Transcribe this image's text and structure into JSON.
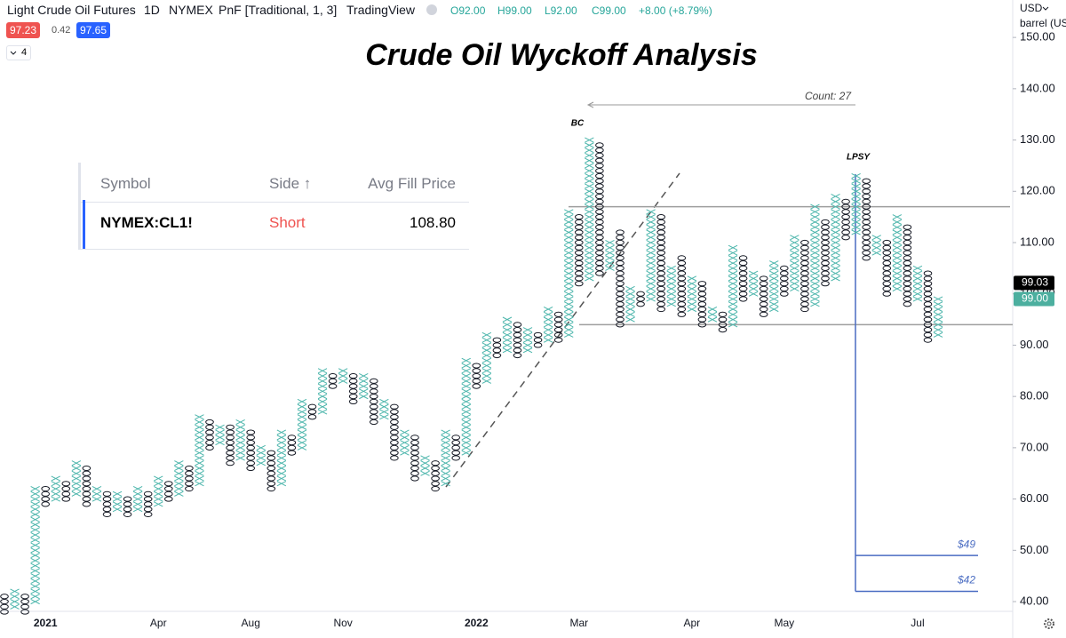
{
  "header": {
    "symbol": "Light Crude Oil Futures",
    "interval": "1D",
    "exchange": "NYMEX",
    "chart_style": "PnF [Traditional, 1, 3]",
    "source": "TradingView",
    "open": "O92.00",
    "high": "H99.00",
    "low": "L92.00",
    "close": "C99.00",
    "change": "+8.00 (+8.79%)",
    "sell": "97.23",
    "spread": "0.42",
    "buy": "97.65",
    "indicators": "4"
  },
  "scale": {
    "currency": "USD",
    "unit": "barrel (US"
  },
  "order_panel": {
    "columns": [
      "Symbol",
      "Side ↑",
      "Avg Fill Price"
    ],
    "rows": [
      [
        "NYMEX:CL1!",
        "Short",
        "108.80"
      ]
    ]
  },
  "chart_data": {
    "type": "pnf",
    "title": "Crude Oil Wyckoff Analysis",
    "box_size": 1,
    "categories": [
      null,
      null,
      null,
      null,
      "2021",
      null,
      null,
      null,
      null,
      null,
      null,
      null,
      null,
      null,
      null,
      "Apr",
      null,
      null,
      null,
      null,
      null,
      null,
      null,
      null,
      "Aug",
      null,
      null,
      null,
      null,
      null,
      null,
      null,
      null,
      "Nov",
      null,
      null,
      null,
      null,
      null,
      null,
      null,
      null,
      null,
      null,
      null,
      null,
      "2022",
      null,
      null,
      null,
      null,
      null,
      null,
      null,
      null,
      null,
      "Mar",
      null,
      null,
      null,
      null,
      null,
      null,
      null,
      null,
      null,
      null,
      "Apr",
      null,
      null,
      null,
      null,
      null,
      null,
      null,
      null,
      "May",
      null,
      null,
      null,
      null,
      null,
      null,
      null,
      null,
      null,
      null,
      null,
      null,
      "Jul",
      null,
      null
    ],
    "kind": [
      "o",
      "x",
      "o",
      "x",
      "o",
      "x",
      "o",
      "x",
      "o",
      "x",
      "o",
      "x",
      "o",
      "x",
      "o",
      "x",
      "o",
      "x",
      "o",
      "x",
      "o",
      "x",
      "o",
      "x",
      "o",
      "x",
      "o",
      "x",
      "o",
      "x",
      "o",
      "x",
      "o",
      "x",
      "o",
      "x",
      "o",
      "x",
      "o",
      "x",
      "o",
      "x",
      "o",
      "x",
      "o",
      "x",
      "o",
      "x",
      "o",
      "x",
      "o",
      "x",
      "o",
      "x",
      "o",
      "x",
      "o",
      "x",
      "o",
      "x",
      "o",
      "x",
      "o",
      "x",
      "o",
      "x",
      "o",
      "x",
      "o",
      "x",
      "o",
      "x",
      "o",
      "x",
      "o",
      "x",
      "o",
      "x",
      "o",
      "x",
      "o",
      "x",
      "o",
      "x",
      "o",
      "x",
      "o",
      "x",
      "o",
      "x",
      "o",
      "x"
    ],
    "low": [
      38,
      39,
      38,
      40,
      59,
      60,
      60,
      61,
      59,
      60,
      57,
      58,
      57,
      58,
      57,
      59,
      60,
      61,
      62,
      63,
      70,
      71,
      67,
      68,
      66,
      67,
      62,
      63,
      69,
      70,
      76,
      77,
      82,
      83,
      79,
      80,
      75,
      76,
      68,
      69,
      64,
      65,
      62,
      63,
      68,
      69,
      82,
      83,
      88,
      89,
      88,
      89,
      90,
      91,
      91,
      92,
      102,
      103,
      104,
      105,
      94,
      95,
      98,
      99,
      97,
      98,
      96,
      97,
      94,
      95,
      93,
      94,
      99,
      100,
      96,
      97,
      100,
      101,
      97,
      98,
      102,
      103,
      111,
      112,
      107,
      108,
      100,
      101,
      98,
      99,
      91,
      92
    ],
    "high": [
      41,
      42,
      41,
      62,
      62,
      64,
      63,
      67,
      66,
      62,
      61,
      61,
      60,
      62,
      61,
      64,
      63,
      67,
      66,
      76,
      75,
      74,
      74,
      75,
      73,
      70,
      69,
      73,
      72,
      79,
      78,
      85,
      84,
      85,
      84,
      84,
      83,
      79,
      78,
      73,
      72,
      68,
      67,
      73,
      72,
      87,
      86,
      92,
      91,
      95,
      94,
      93,
      92,
      97,
      96,
      116,
      115,
      130,
      129,
      110,
      112,
      101,
      100,
      116,
      115,
      105,
      107,
      103,
      102,
      97,
      96,
      109,
      107,
      104,
      103,
      106,
      105,
      111,
      110,
      117,
      114,
      119,
      118,
      123,
      122,
      111,
      110,
      115,
      113,
      105,
      104,
      99
    ],
    "colors": {
      "x": "#4db6ac",
      "o": "#131722",
      "level": "#9e9e9e",
      "target": "#4a6cc2"
    },
    "ylim": [
      38.1,
      157.3
    ],
    "yticks": [
      {
        "value": 40,
        "label": "40.00"
      },
      {
        "value": 50,
        "label": "50.00"
      },
      {
        "value": 60,
        "label": "60.00"
      },
      {
        "value": 70,
        "label": "70.00"
      },
      {
        "value": 80,
        "label": "80.00"
      },
      {
        "value": 90,
        "label": "90.00"
      },
      {
        "value": 100,
        "label": "100.00"
      },
      {
        "value": 110,
        "label": "110.00"
      },
      {
        "value": 120,
        "label": "120.00"
      },
      {
        "value": 130,
        "label": "130.00"
      },
      {
        "value": 140,
        "label": "140.00"
      },
      {
        "value": 150,
        "label": "150.00"
      }
    ],
    "levels": [
      117,
      94
    ],
    "targets": [
      49,
      42
    ],
    "target_labels": [
      "$49",
      "$42"
    ],
    "annotations": [
      "BC",
      "LPSY",
      "Count: 27"
    ],
    "price_tags": [
      {
        "value": 99.03,
        "label": "99.03",
        "color": "#000000"
      },
      {
        "value": 99,
        "label": "99.00",
        "color": "#4caf9f"
      }
    ]
  }
}
